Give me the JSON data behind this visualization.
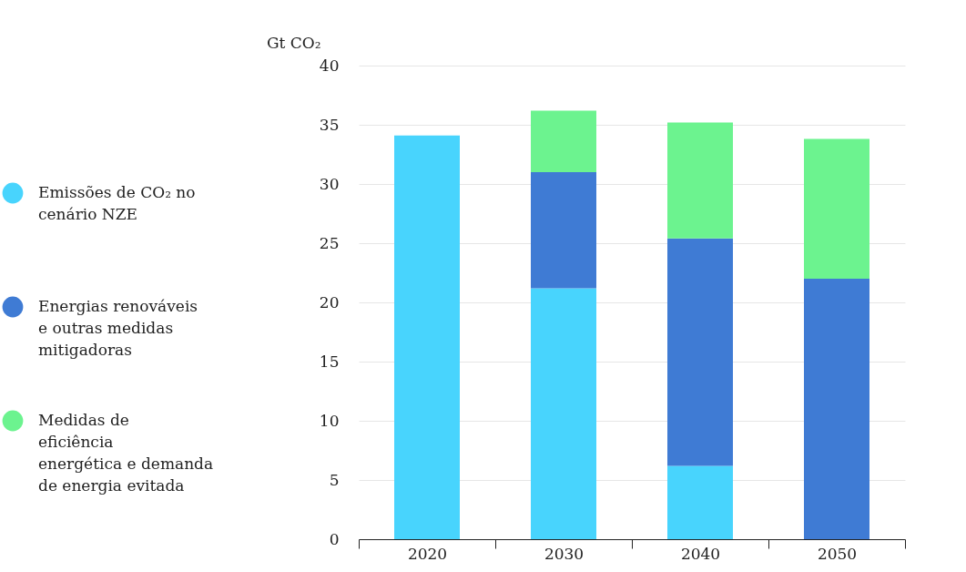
{
  "chart_data": {
    "type": "bar",
    "stacked": true,
    "ylabel": "Gt CO₂",
    "categories": [
      "2020",
      "2030",
      "2040",
      "2050"
    ],
    "series": [
      {
        "name": "Emissões de CO₂ no cenário NZE",
        "color": "#48d4fd",
        "values": [
          34.1,
          21.2,
          6.2,
          null
        ]
      },
      {
        "name": "Energias renováveis e outras medidas mitigadoras",
        "color": "#3f7bd4",
        "values": [
          null,
          9.8,
          19.2,
          22.0
        ]
      },
      {
        "name": "Medidas de eficiência energética e demanda de energia evitada",
        "color": "#6cf38f",
        "values": [
          null,
          5.2,
          9.8,
          11.8
        ]
      }
    ],
    "ylim": [
      0,
      40
    ],
    "yticks": [
      0,
      5,
      10,
      15,
      20,
      25,
      30,
      35,
      40
    ],
    "grid": "y",
    "legend": "left"
  }
}
